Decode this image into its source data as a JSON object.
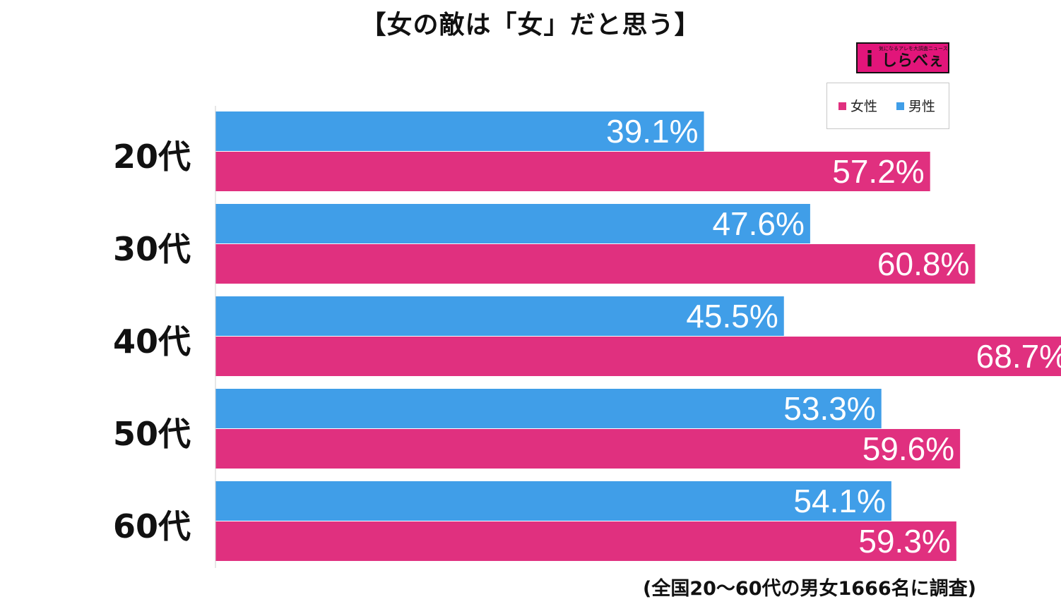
{
  "title": "【女の敵は「女」だと思う】",
  "logo": {
    "brand": "しらべぇ",
    "mark": "i",
    "tagline": "気になるアレを大調査ニュース!"
  },
  "note": "(全国20〜60代の男女1666名に調査)",
  "colors": {
    "female": "#e0307f",
    "male": "#409ee8",
    "axis": "#cfcfcf"
  },
  "chart_data": {
    "type": "bar",
    "orientation": "horizontal",
    "categories": [
      "20代",
      "30代",
      "40代",
      "50代",
      "60代"
    ],
    "series": [
      {
        "name": "男性",
        "color": "#409ee8",
        "values": [
          39.1,
          47.6,
          45.5,
          53.3,
          54.1
        ]
      },
      {
        "name": "女性",
        "color": "#e0307f",
        "values": [
          57.2,
          60.8,
          68.7,
          59.6,
          59.3
        ]
      }
    ],
    "value_suffix": "%",
    "legend": {
      "position": "top-right",
      "entries": [
        "女性",
        "男性"
      ]
    },
    "xlim": [
      0,
      73.5
    ],
    "grid": false
  }
}
